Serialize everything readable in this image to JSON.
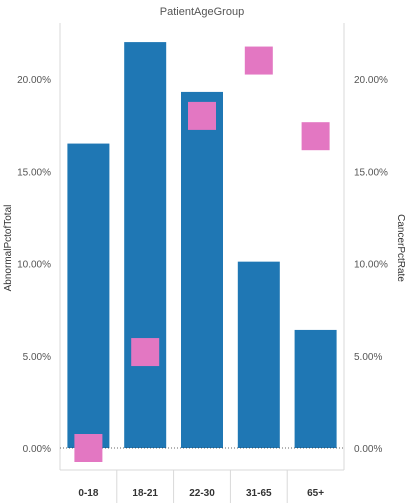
{
  "chart_data": {
    "type": "bar",
    "title": "PatientAgeGroup",
    "categories": [
      "0-18",
      "18-21",
      "22-30",
      "31-65",
      "65+"
    ],
    "series": [
      {
        "name": "AbnormalPctofTotal",
        "kind": "bar",
        "axis": "left",
        "color": "#1f77b4",
        "values": [
          16.5,
          22.0,
          19.3,
          10.1,
          6.4
        ]
      },
      {
        "name": "CancerPctRate",
        "kind": "square-marker",
        "axis": "right",
        "color": "#e377c2",
        "values": [
          0.0,
          5.2,
          18.0,
          21.0,
          16.9
        ]
      }
    ],
    "ylabel_left": "AbnormalPctofTotal",
    "ylabel_right": "CancerPctRate",
    "yticks": [
      "0.00%",
      "5.00%",
      "10.00%",
      "15.00%",
      "20.00%"
    ],
    "ylim": [
      0,
      24
    ],
    "grid": false,
    "legend": "none"
  }
}
